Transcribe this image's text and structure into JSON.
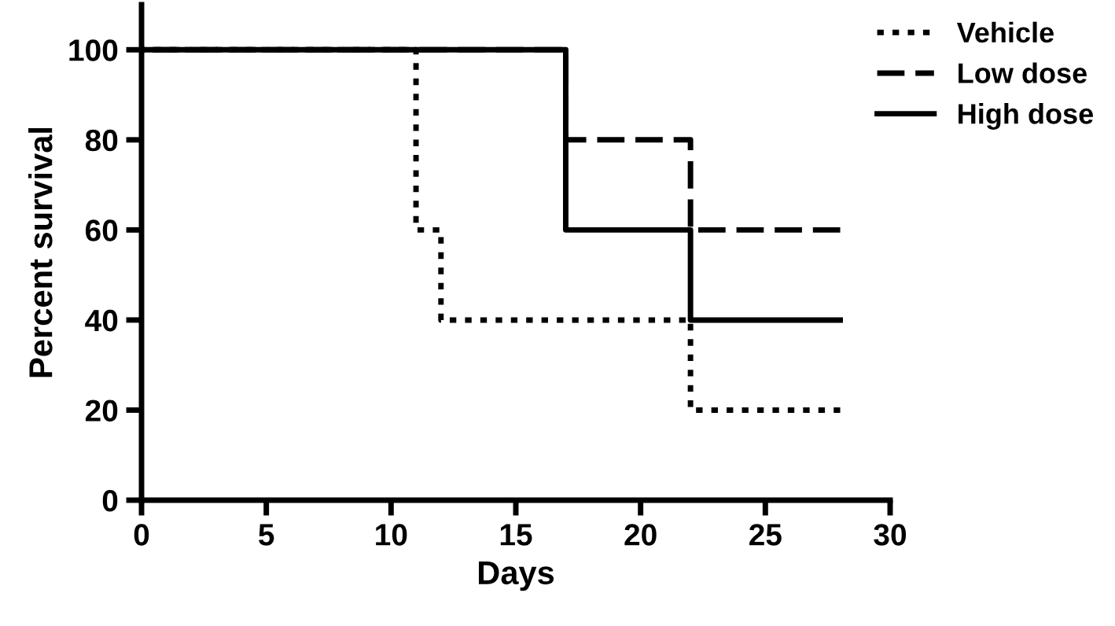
{
  "chart_data": {
    "type": "step",
    "xlabel": "Days",
    "ylabel": "Percent survival",
    "xlim": [
      0,
      30
    ],
    "xticks": [
      0,
      5,
      10,
      15,
      20,
      25,
      30
    ],
    "ylim": [
      0,
      110
    ],
    "yticks": [
      0,
      20,
      40,
      60,
      80,
      100
    ],
    "grid": false,
    "legend": "top right",
    "series": [
      {
        "name": "Vehicle",
        "color": "#000000",
        "line_style": "dotted",
        "x": [
          0,
          11,
          12,
          22,
          28
        ],
        "values": [
          100,
          60,
          40,
          20,
          20
        ]
      },
      {
        "name": "Low dose",
        "color": "#000000",
        "line_style": "dashed",
        "x": [
          0,
          17,
          22,
          28
        ],
        "values": [
          100,
          80,
          60,
          60
        ]
      },
      {
        "name": "High dose",
        "color": "#000000",
        "line_style": "solid",
        "x": [
          0,
          17,
          22,
          28
        ],
        "values": [
          100,
          60,
          40,
          40
        ]
      }
    ]
  }
}
